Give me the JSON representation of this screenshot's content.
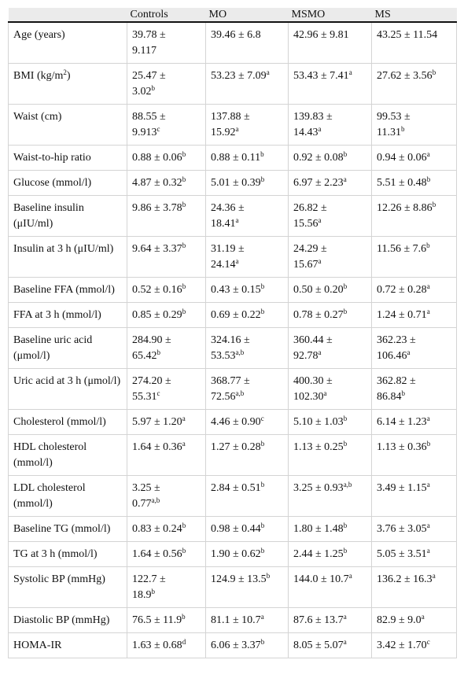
{
  "table": {
    "headers": [
      "Controls",
      "MO",
      "MSMO",
      "MS"
    ],
    "rows": [
      {
        "label": "Age (years)",
        "cells": [
          {
            "text": "39.78 ± 9.117"
          },
          {
            "text": "39.46 ± 6.8"
          },
          {
            "text": "42.96 ± 9.81"
          },
          {
            "text": "43.25 ± 11.54"
          }
        ]
      },
      {
        "label": "BMI (kg/m",
        "label_sup": "2",
        "label_end": ")",
        "cells": [
          {
            "text": "25.47 ± 3.02",
            "sup": "b"
          },
          {
            "text": "53.23 ± 7.09",
            "sup": "a"
          },
          {
            "text": "53.43 ± 7.41",
            "sup": "a"
          },
          {
            "text": "27.62 ± 3.56",
            "sup": "b"
          }
        ]
      },
      {
        "label": "Waist (cm)",
        "cells": [
          {
            "text": "88.55 ± 9.913",
            "sup": "c"
          },
          {
            "text": "137.88 ± 15.92",
            "sup": "a"
          },
          {
            "text": "139.83 ± 14.43",
            "sup": "a"
          },
          {
            "text": "99.53 ± 11.31",
            "sup": "b"
          }
        ]
      },
      {
        "label": "Waist-to-hip ratio",
        "cells": [
          {
            "text": "0.88 ± 0.06",
            "sup": "b"
          },
          {
            "text": "0.88 ± 0.11",
            "sup": "b"
          },
          {
            "text": "0.92 ± 0.08",
            "sup": "b"
          },
          {
            "text": "0.94 ± 0.06",
            "sup": "a"
          }
        ]
      },
      {
        "label": "Glucose (mmol/l)",
        "cells": [
          {
            "text": "4.87 ± 0.32",
            "sup": "b"
          },
          {
            "text": "5.01 ± 0.39",
            "sup": "b"
          },
          {
            "text": "6.97 ± 2.23",
            "sup": "a"
          },
          {
            "text": "5.51 ± 0.48",
            "sup": "b"
          }
        ]
      },
      {
        "label": "Baseline insulin (μIU/ml)",
        "cells": [
          {
            "text": "9.86 ± 3.78",
            "sup": "b"
          },
          {
            "text": "24.36 ± 18.41",
            "sup": "a"
          },
          {
            "text": "26.82 ± 15.56",
            "sup": "a"
          },
          {
            "text": "12.26 ± 8.86",
            "sup": "b"
          }
        ]
      },
      {
        "label": "Insulin at 3 h (μIU/ml)",
        "cells": [
          {
            "text": "9.64 ± 3.37",
            "sup": "b"
          },
          {
            "text": "31.19 ± 24.14",
            "sup": "a"
          },
          {
            "text": "24.29 ± 15.67",
            "sup": "a"
          },
          {
            "text": "11.56 ± 7.6",
            "sup": "b"
          }
        ]
      },
      {
        "label": "Baseline FFA (mmol/l)",
        "cells": [
          {
            "text": "0.52 ± 0.16",
            "sup": "b"
          },
          {
            "text": "0.43 ± 0.15",
            "sup": "b"
          },
          {
            "text": "0.50 ± 0.20",
            "sup": "b"
          },
          {
            "text": "0.72 ± 0.28",
            "sup": "a"
          }
        ]
      },
      {
        "label": "FFA at 3 h (mmol/l)",
        "cells": [
          {
            "text": "0.85 ± 0.29",
            "sup": "b"
          },
          {
            "text": "0.69 ± 0.22",
            "sup": "b"
          },
          {
            "text": "0.78 ± 0.27",
            "sup": "b"
          },
          {
            "text": "1.24 ± 0.71",
            "sup": "a"
          }
        ]
      },
      {
        "label": "Baseline uric acid (μmol/l)",
        "cells": [
          {
            "text": "284.90 ± 65.42",
            "sup": "b"
          },
          {
            "text": "324.16 ± 53.53",
            "sup": "a,b"
          },
          {
            "text": "360.44 ± 92.78",
            "sup": "a"
          },
          {
            "text": "362.23 ± 106.46",
            "sup": "a"
          }
        ]
      },
      {
        "label": "Uric acid at 3 h (μmol/l)",
        "cells": [
          {
            "text": "274.20 ± 55.31",
            "sup": "c"
          },
          {
            "text": "368.77 ± 72.56",
            "sup": "a,b"
          },
          {
            "text": "400.30 ± 102.30",
            "sup": "a"
          },
          {
            "text": "362.82 ± 86.84",
            "sup": "b"
          }
        ]
      },
      {
        "label": "Cholesterol (mmol/l)",
        "cells": [
          {
            "text": "5.97 ± 1.20",
            "sup": "a"
          },
          {
            "text": "4.46 ± 0.90",
            "sup": "c"
          },
          {
            "text": "5.10 ± 1.03",
            "sup": "b"
          },
          {
            "text": "6.14 ± 1.23",
            "sup": "a"
          }
        ]
      },
      {
        "label": "HDL cholesterol (mmol/l)",
        "cells": [
          {
            "text": "1.64 ± 0.36",
            "sup": "a"
          },
          {
            "text": "1.27 ± 0.28",
            "sup": "b"
          },
          {
            "text": "1.13 ± 0.25",
            "sup": "b"
          },
          {
            "text": "1.13 ± 0.36",
            "sup": "b"
          }
        ]
      },
      {
        "label": "LDL cholesterol (mmol/l)",
        "cells": [
          {
            "text": "3.25 ± 0.77",
            "sup": "a,b"
          },
          {
            "text": "2.84 ± 0.51",
            "sup": "b"
          },
          {
            "text": "3.25 ± 0.93",
            "sup": "a,b"
          },
          {
            "text": "3.49 ± 1.15",
            "sup": "a"
          }
        ]
      },
      {
        "label": "Baseline TG (mmol/l)",
        "cells": [
          {
            "text": "0.83 ± 0.24",
            "sup": "b"
          },
          {
            "text": "0.98 ± 0.44",
            "sup": "b"
          },
          {
            "text": "1.80 ± 1.48",
            "sup": "b"
          },
          {
            "text": "3.76 ± 3.05",
            "sup": "a"
          }
        ]
      },
      {
        "label": "TG at 3 h (mmol/l)",
        "cells": [
          {
            "text": "1.64 ± 0.56",
            "sup": "b"
          },
          {
            "text": "1.90 ± 0.62",
            "sup": "b"
          },
          {
            "text": "2.44 ± 1.25",
            "sup": "b"
          },
          {
            "text": "5.05 ± 3.51",
            "sup": "a"
          }
        ]
      },
      {
        "label": "Systolic BP (mmHg)",
        "cells": [
          {
            "text": "122.7 ± 18.9",
            "sup": "b"
          },
          {
            "text": "124.9 ± 13.5",
            "sup": "b"
          },
          {
            "text": "144.0 ± 10.7",
            "sup": "a"
          },
          {
            "text": "136.2 ± 16.3",
            "sup": "a"
          }
        ]
      },
      {
        "label": "Diastolic BP (mmHg)",
        "cells": [
          {
            "text": "76.5 ± 11.9",
            "sup": "b"
          },
          {
            "text": "81.1 ± 10.7",
            "sup": "a"
          },
          {
            "text": "87.6 ± 13.7",
            "sup": "a"
          },
          {
            "text": "82.9 ± 9.0",
            "sup": "a"
          }
        ]
      },
      {
        "label": "HOMA-IR",
        "cells": [
          {
            "text": "1.63 ± 0.68",
            "sup": "d"
          },
          {
            "text": "6.06 ± 3.37",
            "sup": "b"
          },
          {
            "text": "8.05 ± 5.07",
            "sup": "a"
          },
          {
            "text": "3.42 ± 1.70",
            "sup": "c"
          }
        ]
      }
    ]
  }
}
